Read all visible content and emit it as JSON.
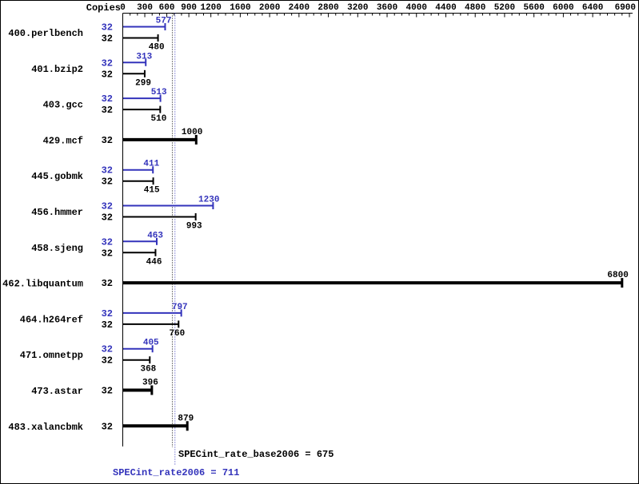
{
  "chart_data": {
    "type": "bar",
    "orientation": "horizontal",
    "title": "",
    "copies_label": "Copies",
    "axis": {
      "min": 0,
      "max": 6900,
      "tick_values": [
        0,
        300,
        600,
        900,
        1200,
        1600,
        2000,
        2400,
        2800,
        3200,
        3600,
        4000,
        4400,
        4800,
        5200,
        5600,
        6000,
        6400,
        6900
      ],
      "minor_tick_step": 100
    },
    "series_colors": {
      "peak": "#3333bb",
      "base": "#000000"
    },
    "benchmarks": [
      {
        "name": "400.perlbench",
        "peak": {
          "copies": 32,
          "value": 577
        },
        "base": {
          "copies": 32,
          "value": 480
        },
        "base_only": false
      },
      {
        "name": "401.bzip2",
        "peak": {
          "copies": 32,
          "value": 313
        },
        "base": {
          "copies": 32,
          "value": 299
        },
        "base_only": false
      },
      {
        "name": "403.gcc",
        "peak": {
          "copies": 32,
          "value": 513
        },
        "base": {
          "copies": 32,
          "value": 510
        },
        "base_only": false
      },
      {
        "name": "429.mcf",
        "base": {
          "copies": 32,
          "value": 1000
        },
        "base_only": true
      },
      {
        "name": "445.gobmk",
        "peak": {
          "copies": 32,
          "value": 411
        },
        "base": {
          "copies": 32,
          "value": 415
        },
        "base_only": false
      },
      {
        "name": "456.hmmer",
        "peak": {
          "copies": 32,
          "value": 1230
        },
        "base": {
          "copies": 32,
          "value": 993
        },
        "base_only": false
      },
      {
        "name": "458.sjeng",
        "peak": {
          "copies": 32,
          "value": 463
        },
        "base": {
          "copies": 32,
          "value": 446
        },
        "base_only": false
      },
      {
        "name": "462.libquantum",
        "base": {
          "copies": 32,
          "value": 6800
        },
        "base_only": true
      },
      {
        "name": "464.h264ref",
        "peak": {
          "copies": 32,
          "value": 797
        },
        "base": {
          "copies": 32,
          "value": 760
        },
        "base_only": false
      },
      {
        "name": "471.omnetpp",
        "peak": {
          "copies": 32,
          "value": 405
        },
        "base": {
          "copies": 32,
          "value": 368
        },
        "base_only": false
      },
      {
        "name": "473.astar",
        "base": {
          "copies": 32,
          "value": 396
        },
        "base_only": true
      },
      {
        "name": "483.xalancbmk",
        "base": {
          "copies": 32,
          "value": 879
        },
        "base_only": true
      }
    ],
    "summary": {
      "base_text": "SPECint_rate_base2006 = 675",
      "base_value": 675,
      "peak_text": "SPECint_rate2006 = 711",
      "peak_value": 711
    }
  }
}
